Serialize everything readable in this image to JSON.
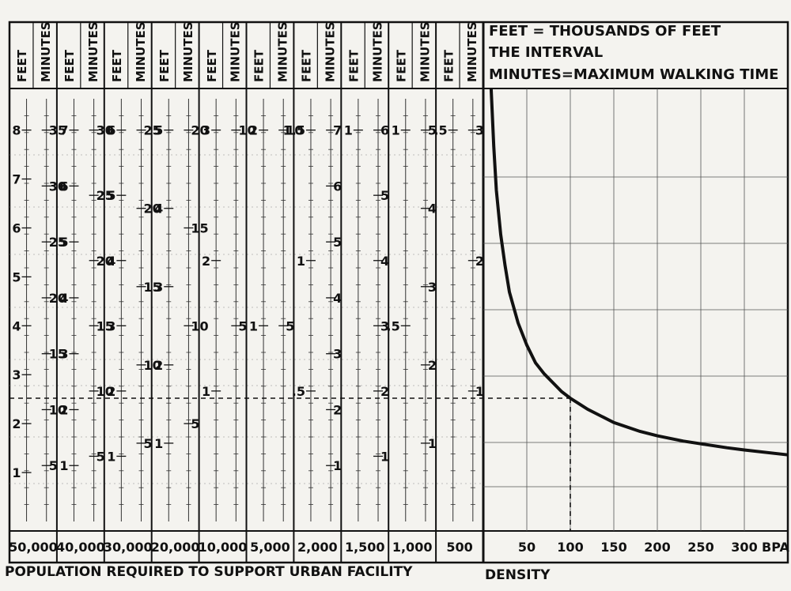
{
  "legend": {
    "line1": "FEET = THOUSANDS OF FEET",
    "line2": "THE INTERVAL",
    "line3": "MINUTES=MAXIMUM WALKING TIME"
  },
  "footer": {
    "left_caption": "POPULATION REQUIRED TO SUPPORT URBAN FACILITY",
    "right_caption": "DENSITY"
  },
  "chart_data": [
    {
      "type": "nomogram",
      "header_feet": "FEET",
      "header_minutes": "MINUTES",
      "x_unit_label": "BPA",
      "columns": [
        {
          "population": "50,000",
          "feet_max": 8,
          "feet_step": 1,
          "minutes_max": 35,
          "minutes_step": 5
        },
        {
          "population": "40,000",
          "feet_max": 7,
          "feet_step": 1,
          "minutes_max": 30,
          "minutes_step": 5
        },
        {
          "population": "30,000",
          "feet_max": 6,
          "feet_step": 1,
          "minutes_max": 25,
          "minutes_step": 5
        },
        {
          "population": "20,000",
          "feet_max": 5,
          "feet_step": 1,
          "minutes_max": 20,
          "minutes_step": 5
        },
        {
          "population": "10,000",
          "feet_max": 3,
          "feet_step": 1,
          "minutes_max": 10,
          "minutes_step": 5
        },
        {
          "population": "5,000",
          "feet_max": 2,
          "feet_step": 1,
          "minutes_max": 10,
          "minutes_step": 5
        },
        {
          "population": "2,000",
          "feet_max": 1.5,
          "feet_step": 0.5,
          "minutes_max": 7,
          "minutes_step": 1
        },
        {
          "population": "1,500",
          "feet_max": 1,
          "feet_step": 1,
          "minutes_max": 6,
          "minutes_step": 1
        },
        {
          "population": "1,000",
          "feet_max": 1,
          "feet_step": 0.5,
          "minutes_max": 5,
          "minutes_step": 1
        },
        {
          "population": "500",
          "feet_max": 0.5,
          "feet_step": 0.5,
          "minutes_max": 3,
          "minutes_step": 1
        }
      ]
    },
    {
      "type": "line",
      "xlabel": "DENSITY",
      "x_ticks": [
        "50",
        "100",
        "150",
        "200",
        "250",
        "300"
      ],
      "xlim": [
        0,
        350
      ],
      "series": [
        {
          "x": [
            9,
            12,
            15,
            20,
            25,
            30,
            40,
            50,
            60,
            70,
            80,
            90,
            100,
            120,
            150,
            180,
            200,
            230,
            250,
            280,
            300,
            350
          ],
          "y": [
            1.0,
            0.87,
            0.77,
            0.67,
            0.6,
            0.54,
            0.47,
            0.42,
            0.38,
            0.355,
            0.335,
            0.315,
            0.3,
            0.275,
            0.245,
            0.225,
            0.215,
            0.203,
            0.197,
            0.188,
            0.183,
            0.172
          ]
        }
      ],
      "annotation": {
        "x": 100,
        "y": 0.3
      },
      "grid": true
    }
  ]
}
